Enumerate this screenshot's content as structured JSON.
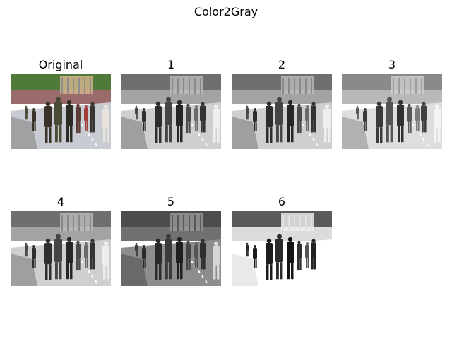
{
  "figure": {
    "suptitle": "Color2Gray",
    "panels": [
      {
        "title": "Original",
        "image": "color-street-scene",
        "mode": "color"
      },
      {
        "title": "1",
        "image": "grayscale-street-scene",
        "mode": "gray"
      },
      {
        "title": "2",
        "image": "grayscale-street-scene",
        "mode": "gray"
      },
      {
        "title": "3",
        "image": "grayscale-street-scene",
        "mode": "gray-light"
      },
      {
        "title": "4",
        "image": "grayscale-street-scene",
        "mode": "gray"
      },
      {
        "title": "5",
        "image": "grayscale-street-scene",
        "mode": "gray-dark"
      },
      {
        "title": "6",
        "image": "grayscale-street-scene",
        "mode": "gray-high-contrast"
      }
    ]
  }
}
